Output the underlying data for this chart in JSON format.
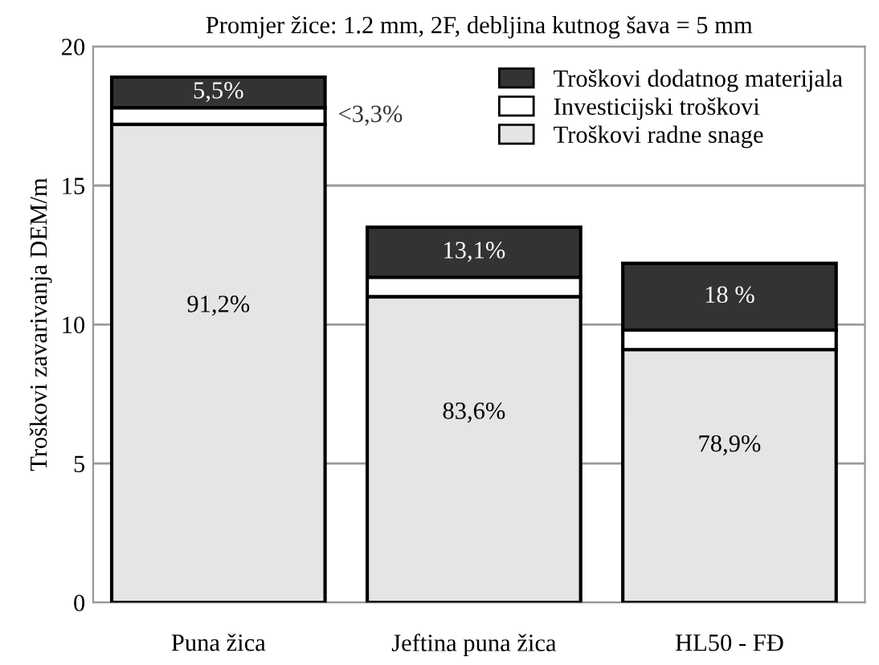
{
  "chart_data": {
    "type": "bar",
    "stacked": true,
    "title": "Promjer žice: 1.2 mm, 2F, debljina kutnog šava = 5 mm",
    "ylabel": "Troškovi zavarivanja DEM/m",
    "categories": [
      "Puna žica",
      "Jeftina puna žica",
      "HL50 - FĐ"
    ],
    "series": [
      {
        "name": "Troškovi radne snage",
        "color": "#e5e5e5",
        "values": [
          17.2,
          11.0,
          9.1
        ]
      },
      {
        "name": "Investicijski troškovi",
        "color": "#ffffff",
        "values": [
          0.6,
          0.7,
          0.7
        ]
      },
      {
        "name": "Troškovi dodatnog materijala",
        "color": "#333333",
        "values": [
          1.1,
          1.8,
          2.4
        ]
      }
    ],
    "annotations": [
      "91,2%",
      "83,6%",
      "78,9%",
      "<3,3%",
      "5,5%",
      "13,1%",
      "18 %"
    ],
    "ylim": [
      0,
      20
    ],
    "yticks": [
      0,
      5,
      10,
      15,
      20
    ],
    "grid": "y",
    "legend": "top right"
  }
}
